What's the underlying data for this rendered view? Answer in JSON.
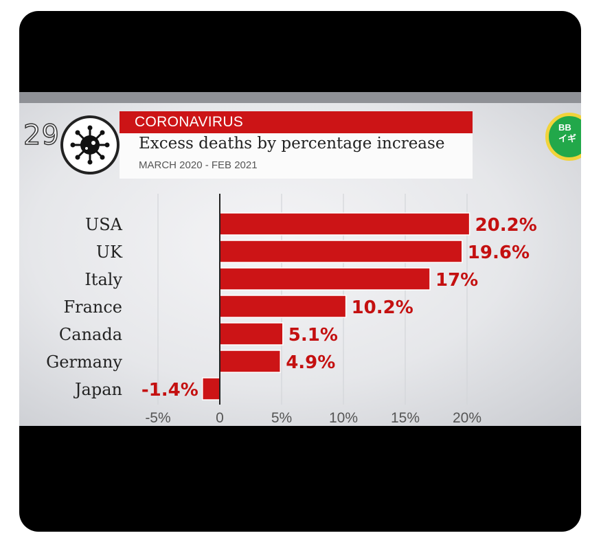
{
  "header": {
    "episode_number": "29",
    "category": "CORONAVIRUS",
    "title": "Excess deaths by percentage increase",
    "subtitle": "MARCH 2020 - FEB 2021"
  },
  "logo": {
    "line1": "BB",
    "line2": "イギ"
  },
  "icon": "virus-icon",
  "colors": {
    "bar": "#cc1416",
    "label": "#c41010",
    "background": "#e9eaed",
    "frame": "#000000"
  },
  "chart_data": {
    "type": "bar",
    "orientation": "horizontal",
    "categories": [
      "USA",
      "UK",
      "Italy",
      "France",
      "Canada",
      "Germany",
      "Japan"
    ],
    "values": [
      20.2,
      19.6,
      17,
      10.2,
      5.1,
      4.9,
      -1.4
    ],
    "value_labels": [
      "20.2%",
      "19.6%",
      "17%",
      "10.2%",
      "5.1%",
      "4.9%",
      "-1.4%"
    ],
    "x_ticks": [
      -5,
      0,
      5,
      10,
      15,
      20
    ],
    "x_tick_labels": [
      "-5%",
      "0",
      "5%",
      "10%",
      "15%",
      "20%"
    ],
    "xlim": [
      -5,
      20
    ],
    "grid": true
  }
}
